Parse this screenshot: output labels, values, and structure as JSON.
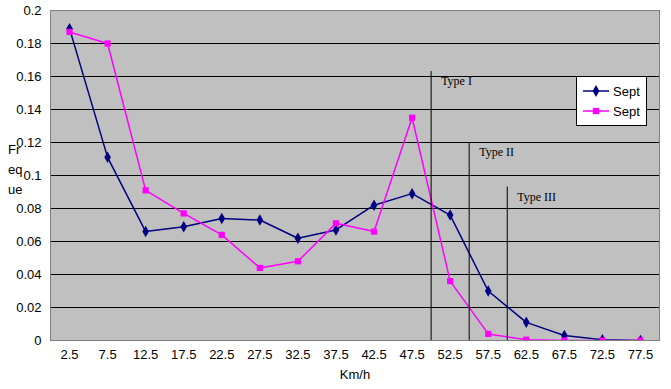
{
  "chart_data": {
    "type": "line",
    "x_label": "Km/h",
    "y_label": "Fr\neq\nue",
    "x": [
      2.5,
      7.5,
      12.5,
      17.5,
      22.5,
      27.5,
      32.5,
      37.5,
      42.5,
      47.5,
      52.5,
      57.5,
      62.5,
      67.5,
      72.5,
      77.5
    ],
    "series": [
      {
        "name": "Sept",
        "color": "#000080",
        "marker": "diamond",
        "values": [
          0.189,
          0.111,
          0.066,
          0.069,
          0.074,
          0.073,
          0.062,
          0.067,
          0.082,
          0.089,
          0.076,
          0.03,
          0.011,
          0.003,
          0.0005,
          0.0
        ]
      },
      {
        "name": "Sept",
        "color": "#ff00ff",
        "marker": "square",
        "values": [
          0.187,
          0.18,
          0.091,
          0.077,
          0.064,
          0.044,
          0.048,
          0.071,
          0.066,
          0.135,
          0.036,
          0.004,
          0.0005,
          0.0,
          0.0,
          0.0
        ]
      }
    ],
    "xlim": [
      0,
      80
    ],
    "xticks": [
      2.5,
      7.5,
      12.5,
      17.5,
      22.5,
      27.5,
      32.5,
      37.5,
      42.5,
      47.5,
      52.5,
      57.5,
      62.5,
      67.5,
      72.5,
      77.5
    ],
    "ylim": [
      0,
      0.2
    ],
    "yticks": [
      0,
      0.02,
      0.04,
      0.06,
      0.08,
      0.1,
      0.12,
      0.14,
      0.16,
      0.18,
      0.2
    ],
    "grid": true,
    "legend": "right",
    "annotations": [
      {
        "x": 50,
        "y": 0.163,
        "text": "Type I"
      },
      {
        "x": 55,
        "y": 0.12,
        "text": "Type II"
      },
      {
        "x": 60,
        "y": 0.093,
        "text": "Type III"
      }
    ]
  }
}
